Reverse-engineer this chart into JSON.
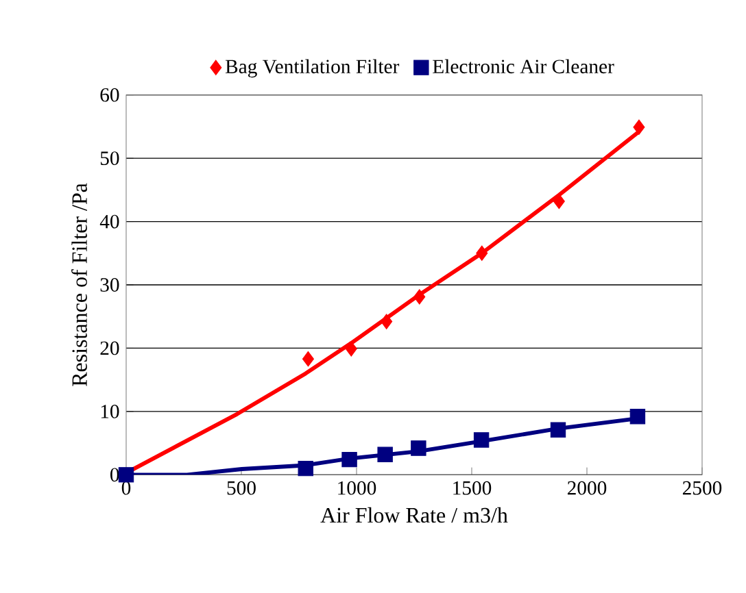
{
  "chart_data": {
    "type": "scatter",
    "xlabel": "Air Flow Rate  / m3/h",
    "ylabel": "Resistance of Filter /Pa",
    "xlim": [
      0,
      2500
    ],
    "xticks": [
      0,
      500,
      1000,
      1500,
      2000,
      2500
    ],
    "ylim": [
      0,
      60
    ],
    "yticks": [
      0,
      10,
      20,
      30,
      40,
      50,
      60
    ],
    "grid": "y",
    "legend": "top",
    "series": [
      {
        "name": "Bag Ventilation Filter",
        "marker": "diamond",
        "color": "#ff0000",
        "x": [
          790,
          977,
          1130,
          1273,
          1544,
          1879,
          2226
        ],
        "values": [
          18.3,
          19.9,
          24.2,
          28.1,
          35.0,
          43.2,
          54.9
        ]
      },
      {
        "name": "Electronic Air Cleaner",
        "marker": "square",
        "color": "#000080",
        "x": [
          0,
          779,
          969,
          1124,
          1269,
          1542,
          1875,
          2220
        ],
        "values": [
          0,
          1.0,
          2.4,
          3.2,
          4.2,
          5.5,
          7.1,
          9.2
        ]
      },
      {
        "type": "line",
        "marker": "none",
        "color": "#ff0000",
        "x": [
          0,
          482,
          779,
          977,
          1275,
          1544,
          1879,
          2226
        ],
        "values": [
          0.3,
          9.6,
          16.0,
          20.8,
          28.5,
          35.0,
          44.2,
          54.2
        ]
      },
      {
        "type": "line",
        "marker": "none",
        "color": "#000080",
        "x": [
          0,
          264,
          502,
          779,
          977,
          1269,
          1542,
          1875,
          2220
        ],
        "values": [
          0,
          0,
          0.9,
          1.5,
          2.6,
          3.7,
          5.3,
          7.3,
          8.9
        ]
      }
    ]
  }
}
